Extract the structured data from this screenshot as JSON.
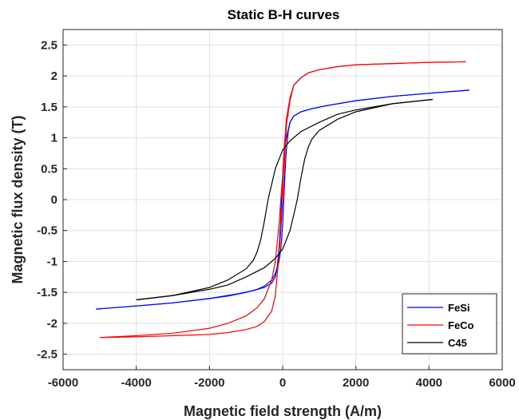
{
  "chart_data": {
    "type": "line",
    "title": "Static B-H curves",
    "xlabel": "Magnetic field strength (A/m)",
    "ylabel": "Magnetic flux density (T)",
    "xlim": [
      -6000,
      6000
    ],
    "ylim": [
      -2.75,
      2.75
    ],
    "xticks": [
      -6000,
      -4000,
      -2000,
      0,
      2000,
      4000,
      6000
    ],
    "yticks": [
      -2.5,
      -2,
      -1.5,
      -1,
      -0.5,
      0,
      0.5,
      1,
      1.5,
      2,
      2.5
    ],
    "xtick_labels": [
      "-6000",
      "-4000",
      "-2000",
      "0",
      "2000",
      "4000",
      "6000"
    ],
    "ytick_labels": [
      "-2.5",
      "-2",
      "-1.5",
      "-1",
      "-0.5",
      "0",
      "0.5",
      "1",
      "1.5",
      "2",
      "2.5"
    ],
    "grid": true,
    "legend_position": "bottom-right",
    "series": [
      {
        "name": "FeSi",
        "color": "#0000ff",
        "ascending": [
          [
            -5100,
            -1.77
          ],
          [
            -4000,
            -1.72
          ],
          [
            -3000,
            -1.67
          ],
          [
            -2000,
            -1.6
          ],
          [
            -1500,
            -1.56
          ],
          [
            -1000,
            -1.5
          ],
          [
            -700,
            -1.45
          ],
          [
            -500,
            -1.4
          ],
          [
            -300,
            -1.3
          ],
          [
            -200,
            -1.2
          ],
          [
            -100,
            -1.0
          ],
          [
            -50,
            -0.8
          ],
          [
            0,
            -0.4
          ],
          [
            30,
            0.0
          ],
          [
            60,
            0.4
          ],
          [
            100,
            0.8
          ],
          [
            150,
            1.1
          ],
          [
            200,
            1.25
          ],
          [
            300,
            1.35
          ],
          [
            500,
            1.42
          ],
          [
            800,
            1.47
          ],
          [
            1200,
            1.52
          ],
          [
            2000,
            1.6
          ],
          [
            3000,
            1.67
          ],
          [
            4000,
            1.72
          ],
          [
            5100,
            1.77
          ]
        ],
        "descending": [
          [
            5100,
            1.77
          ],
          [
            4000,
            1.72
          ],
          [
            3000,
            1.67
          ],
          [
            2000,
            1.6
          ],
          [
            1200,
            1.52
          ],
          [
            800,
            1.47
          ],
          [
            500,
            1.42
          ],
          [
            300,
            1.35
          ],
          [
            200,
            1.25
          ],
          [
            100,
            1.0
          ],
          [
            50,
            0.8
          ],
          [
            0,
            0.4
          ],
          [
            -30,
            0.0
          ],
          [
            -60,
            -0.4
          ],
          [
            -100,
            -0.8
          ],
          [
            -150,
            -1.1
          ],
          [
            -200,
            -1.25
          ],
          [
            -300,
            -1.35
          ],
          [
            -500,
            -1.42
          ],
          [
            -800,
            -1.47
          ],
          [
            -1200,
            -1.52
          ],
          [
            -2000,
            -1.6
          ],
          [
            -3000,
            -1.67
          ],
          [
            -4000,
            -1.72
          ],
          [
            -5100,
            -1.77
          ]
        ]
      },
      {
        "name": "FeCo",
        "color": "#ff0000",
        "ascending": [
          [
            -5000,
            -2.23
          ],
          [
            -4000,
            -2.2
          ],
          [
            -3000,
            -2.16
          ],
          [
            -2000,
            -2.08
          ],
          [
            -1500,
            -2.0
          ],
          [
            -1000,
            -1.88
          ],
          [
            -700,
            -1.75
          ],
          [
            -500,
            -1.6
          ],
          [
            -300,
            -1.3
          ],
          [
            -200,
            -1.0
          ],
          [
            -100,
            -0.4
          ],
          [
            -50,
            0.0
          ],
          [
            0,
            0.4
          ],
          [
            50,
            0.9
          ],
          [
            100,
            1.3
          ],
          [
            200,
            1.65
          ],
          [
            300,
            1.85
          ],
          [
            500,
            1.97
          ],
          [
            700,
            2.05
          ],
          [
            1000,
            2.1
          ],
          [
            1500,
            2.15
          ],
          [
            2000,
            2.18
          ],
          [
            3000,
            2.2
          ],
          [
            4000,
            2.22
          ],
          [
            5000,
            2.23
          ]
        ],
        "descending": [
          [
            5000,
            2.23
          ],
          [
            4000,
            2.22
          ],
          [
            3000,
            2.2
          ],
          [
            2000,
            2.18
          ],
          [
            1500,
            2.15
          ],
          [
            1000,
            2.1
          ],
          [
            700,
            2.05
          ],
          [
            500,
            1.97
          ],
          [
            300,
            1.85
          ],
          [
            200,
            1.6
          ],
          [
            100,
            1.2
          ],
          [
            50,
            0.6
          ],
          [
            0,
            0.0
          ],
          [
            -50,
            -0.5
          ],
          [
            -100,
            -0.9
          ],
          [
            -200,
            -1.55
          ],
          [
            -300,
            -1.8
          ],
          [
            -500,
            -1.97
          ],
          [
            -700,
            -2.05
          ],
          [
            -1000,
            -2.1
          ],
          [
            -1500,
            -2.15
          ],
          [
            -2000,
            -2.18
          ],
          [
            -3000,
            -2.2
          ],
          [
            -4000,
            -2.22
          ],
          [
            -5000,
            -2.23
          ]
        ]
      },
      {
        "name": "C45",
        "color": "#000000",
        "ascending": [
          [
            -4000,
            -1.62
          ],
          [
            -3000,
            -1.55
          ],
          [
            -2000,
            -1.45
          ],
          [
            -1500,
            -1.38
          ],
          [
            -1000,
            -1.25
          ],
          [
            -500,
            -1.1
          ],
          [
            -200,
            -0.95
          ],
          [
            0,
            -0.8
          ],
          [
            200,
            -0.5
          ],
          [
            300,
            -0.25
          ],
          [
            400,
            0.0
          ],
          [
            500,
            0.35
          ],
          [
            600,
            0.65
          ],
          [
            700,
            0.85
          ],
          [
            800,
            0.98
          ],
          [
            1000,
            1.12
          ],
          [
            1500,
            1.3
          ],
          [
            2000,
            1.42
          ],
          [
            3000,
            1.55
          ],
          [
            4100,
            1.62
          ]
        ],
        "descending": [
          [
            4100,
            1.62
          ],
          [
            3000,
            1.55
          ],
          [
            2000,
            1.45
          ],
          [
            1500,
            1.38
          ],
          [
            1000,
            1.25
          ],
          [
            500,
            1.1
          ],
          [
            200,
            0.95
          ],
          [
            0,
            0.8
          ],
          [
            -200,
            0.5
          ],
          [
            -300,
            0.25
          ],
          [
            -400,
            0.0
          ],
          [
            -500,
            -0.35
          ],
          [
            -600,
            -0.65
          ],
          [
            -700,
            -0.85
          ],
          [
            -800,
            -0.98
          ],
          [
            -1000,
            -1.12
          ],
          [
            -1500,
            -1.3
          ],
          [
            -2000,
            -1.42
          ],
          [
            -3000,
            -1.55
          ],
          [
            -4000,
            -1.62
          ]
        ]
      }
    ]
  }
}
